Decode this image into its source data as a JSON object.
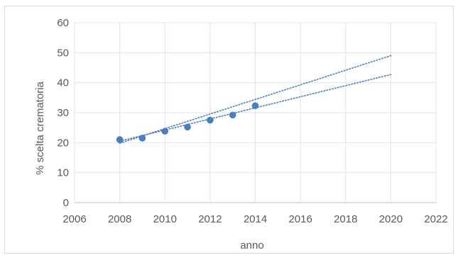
{
  "chart_data": {
    "type": "scatter",
    "title": "",
    "xlabel": "anno",
    "ylabel": "% scelta crematoria",
    "xlim": [
      2006,
      2022
    ],
    "ylim": [
      0,
      60
    ],
    "x_ticks": [
      "2006",
      "2008",
      "2010",
      "2012",
      "2014",
      "2016",
      "2018",
      "2020",
      "2022"
    ],
    "y_ticks": [
      "0",
      "10",
      "20",
      "30",
      "40",
      "50",
      "60"
    ],
    "grid": true,
    "legend": "none",
    "series": [
      {
        "x": [
          2008,
          2009,
          2010,
          2011,
          2012,
          2013,
          2014
        ],
        "y": [
          21.0,
          21.5,
          23.8,
          25.2,
          27.5,
          29.2,
          32.3
        ],
        "color": "#4a7ebf",
        "marker": "circle"
      }
    ],
    "trendlines": [
      {
        "type": "dotted",
        "color": "#4a7ebf",
        "x": [
          2008,
          2020
        ],
        "y": [
          19.8,
          49.0
        ]
      },
      {
        "type": "dotted",
        "color": "#4a7ebf",
        "x": [
          2008,
          2020
        ],
        "y": [
          20.5,
          42.7
        ]
      }
    ]
  }
}
